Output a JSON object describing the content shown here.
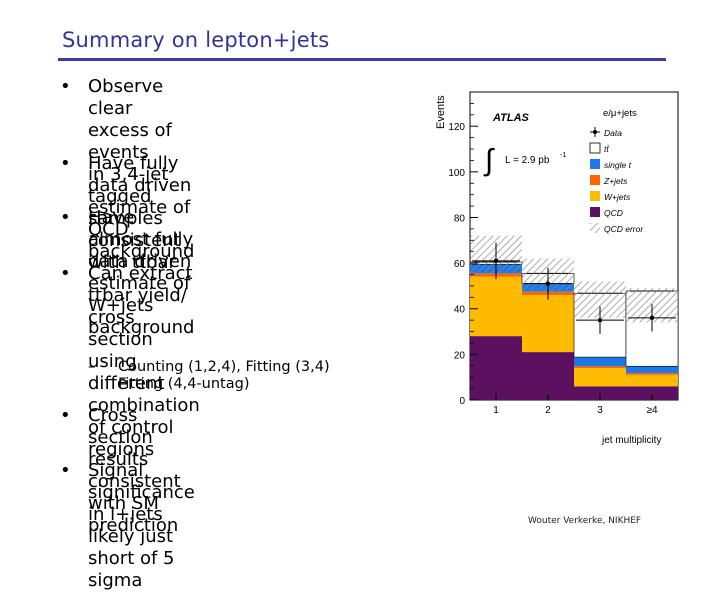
{
  "slide": {
    "title": "Summary on lepton+jets",
    "bullets": [
      {
        "marker": "•",
        "text": "Observe clear excess of events\nin 3,4-jet tagged samples\nconsistent with ttbar"
      },
      {
        "marker": "•",
        "text": "Have fully data driven\nestimate of QCD background"
      },
      {
        "marker": "•",
        "text": "Have almost fully data driven\nestimate of W+jets background"
      },
      {
        "marker": "•",
        "text": "Can extract ttbar yield/\ncross section using different\ncombination of control\nregions"
      },
      {
        "marker": "•",
        "text": "Cross section results consistent\nwith SM prediction"
      },
      {
        "marker": "•",
        "text": "Signal significance in l+jets likely just short of 5 sigma"
      }
    ],
    "subbullet": {
      "marker": "–",
      "text": "Counting (1,2,4), Fitting (3,4)\nFitting (4,4-untag)"
    },
    "footer": "Wouter Verkerke, NIKHEF"
  },
  "chart_data": {
    "type": "bar",
    "stacked": true,
    "title": "ATLAS",
    "channel_label": "e/μ+jets",
    "lumi_label": "L = 2.9 pb",
    "lumi_superscript": "-1",
    "xlabel": "jet multiplicity",
    "ylabel": "Events",
    "categories": [
      "1",
      "2",
      "3",
      "≥4"
    ],
    "ylim": [
      0,
      135
    ],
    "yticks": [
      0,
      20,
      40,
      60,
      80,
      100,
      120
    ],
    "series": [
      {
        "name": "QCD",
        "color": "#5b1060",
        "values": [
          28,
          21,
          6,
          6
        ]
      },
      {
        "name": "W+jets",
        "color": "#ffbb00",
        "values": [
          26,
          25,
          8,
          5
        ]
      },
      {
        "name": "Z+jets",
        "color": "#ff6600",
        "values": [
          1.5,
          1.5,
          0.8,
          0.8
        ]
      },
      {
        "name": "single t",
        "color": "#1e78e8",
        "values": [
          4,
          3.5,
          4,
          3
        ]
      },
      {
        "name": "tt̄",
        "color": "#ffffff",
        "values": [
          1,
          4.5,
          28,
          33
        ]
      }
    ],
    "qcd_error": {
      "name": "QCD error",
      "low": [
        55,
        46,
        36,
        34
      ],
      "high": [
        72,
        62,
        52,
        49
      ]
    },
    "data": {
      "name": "Data",
      "values": [
        61,
        51,
        35,
        36
      ],
      "errors": [
        8,
        7,
        6,
        6
      ]
    },
    "legend_position": "top-right"
  }
}
